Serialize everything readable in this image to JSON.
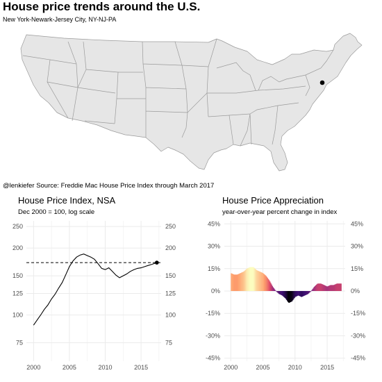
{
  "title": "House price trends around the U.S.",
  "subtitle": "New York-Newark-Jersey City, NY-NJ-PA",
  "caption": "@lenkiefer Source: Freddie Mac House Price Index through March 2017",
  "colors": {
    "map_fill": "#e6e6e6",
    "map_stroke": "#9a9a9a",
    "grid": "#ebebeb",
    "line": "#000000",
    "viridis_magma": [
      "#000004",
      "#3b0f70",
      "#8c2981",
      "#de4968",
      "#fe9f6d",
      "#fcfdbf"
    ]
  },
  "map": {
    "type": "us-states",
    "highlight_marker_icon": "black-dot-marker"
  },
  "chart_data": [
    {
      "type": "line",
      "title": "House Price Index, NSA",
      "subtitle": "Dec 2000 = 100, log scale",
      "xlabel": "",
      "ylabel": "",
      "y_scale": "log",
      "xlim": [
        1999,
        2017.8
      ],
      "ylim": [
        62,
        265
      ],
      "x_ticks": [
        2000,
        2005,
        2010,
        2015
      ],
      "y_ticks": [
        75,
        100,
        125,
        150,
        200,
        250
      ],
      "y_axis_sides": [
        "left",
        "right"
      ],
      "grid": true,
      "reference_line": {
        "y": 172,
        "style": "dashed"
      },
      "end_point": {
        "x": 2017.2,
        "y": 172
      },
      "series": [
        {
          "x": [
            2000.0,
            2000.5,
            2001.0,
            2001.5,
            2002.0,
            2002.5,
            2003.0,
            2003.5,
            2004.0,
            2004.5,
            2005.0,
            2005.5,
            2006.0,
            2006.5,
            2007.0,
            2007.5,
            2008.0,
            2008.5,
            2009.0,
            2009.5,
            2010.0,
            2010.5,
            2011.0,
            2011.5,
            2012.0,
            2012.5,
            2013.0,
            2013.5,
            2014.0,
            2014.5,
            2015.0,
            2015.5,
            2016.0,
            2016.5,
            2017.0,
            2017.2
          ],
          "values": [
            90,
            95,
            100,
            106,
            111,
            118,
            124,
            132,
            140,
            152,
            165,
            175,
            182,
            186,
            188,
            185,
            182,
            178,
            170,
            162,
            160,
            163,
            157,
            151,
            147,
            150,
            153,
            157,
            160,
            162,
            163,
            165,
            167,
            169,
            171,
            172
          ]
        }
      ]
    },
    {
      "type": "area",
      "title": "House Price Appreciation",
      "subtitle": "year-over-year percent change in index",
      "xlabel": "",
      "ylabel": "",
      "xlim": [
        1999,
        2017.8
      ],
      "ylim": [
        -47,
        47
      ],
      "x_ticks": [
        2000,
        2005,
        2010,
        2015
      ],
      "y_ticks": [
        -45,
        -30,
        -15,
        0,
        15,
        30,
        45
      ],
      "y_tick_labels": [
        "-45%",
        "-30%",
        "-15%",
        "0%",
        "15%",
        "30%",
        "45%"
      ],
      "y_axis_sides": [
        "left",
        "right"
      ],
      "grid": true,
      "fill": "colored by value (magma palette)",
      "series": [
        {
          "x": [
            2000.0,
            2000.5,
            2001.0,
            2001.5,
            2002.0,
            2002.5,
            2003.0,
            2003.5,
            2004.0,
            2004.5,
            2005.0,
            2005.5,
            2006.0,
            2006.5,
            2007.0,
            2007.5,
            2008.0,
            2008.5,
            2009.0,
            2009.5,
            2010.0,
            2010.5,
            2011.0,
            2011.5,
            2012.0,
            2012.5,
            2013.0,
            2013.5,
            2014.0,
            2014.5,
            2015.0,
            2015.5,
            2016.0,
            2016.5,
            2017.0,
            2017.2
          ],
          "values": [
            12,
            11,
            11,
            12,
            13,
            15,
            16,
            16,
            14,
            13,
            12,
            10,
            7,
            3,
            0,
            -2,
            -3,
            -5,
            -8,
            -7,
            -4,
            -3,
            -4,
            -3,
            -2,
            0,
            3,
            5,
            5,
            4,
            3,
            4,
            4,
            5,
            5,
            5
          ]
        }
      ]
    }
  ]
}
